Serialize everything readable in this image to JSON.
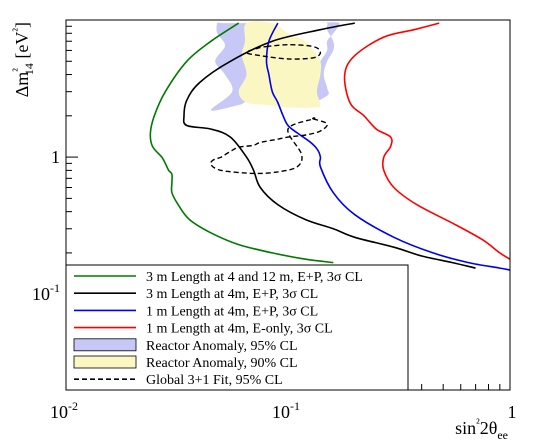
{
  "chart_data": {
    "type": "line",
    "title": "",
    "xlabel": "sin²2θ_ee",
    "ylabel": "Δm²_14 [eV²]",
    "x_scale": "log",
    "y_scale": "log",
    "xlim": [
      0.01,
      1.0
    ],
    "ylim": [
      0.02,
      10.0
    ],
    "grid": false,
    "legend_position": "bottom-left",
    "x_ticks": [
      {
        "value": 0.01,
        "base": "10",
        "exp": "-2"
      },
      {
        "value": 0.1,
        "base": "10",
        "exp": "-1"
      },
      {
        "value": 1.0,
        "base": "1",
        "exp": ""
      }
    ],
    "y_ticks": [
      {
        "value": 0.1,
        "base": "10",
        "exp": "-1"
      },
      {
        "value": 1.0,
        "base": "1",
        "exp": ""
      }
    ],
    "series": [
      {
        "name": "3 m Length at 4 and 12 m, E+P, 3σ CL",
        "color": "#007a00",
        "style": "solid",
        "x": [
          0.06,
          0.045,
          0.035,
          0.028,
          0.025,
          0.024,
          0.0245,
          0.027,
          0.028,
          0.029,
          0.03,
          0.03,
          0.03,
          0.032,
          0.036,
          0.045,
          0.06,
          0.085,
          0.12,
          0.16
        ],
        "y": [
          9.5,
          7,
          5,
          3,
          2,
          1.5,
          1.2,
          1.0,
          0.9,
          0.8,
          0.75,
          0.65,
          0.55,
          0.45,
          0.35,
          0.28,
          0.23,
          0.2,
          0.18,
          0.17
        ]
      },
      {
        "name": "3 m Length at 4m, E+P, 3σ CL",
        "color": "#000000",
        "style": "solid",
        "x": [
          0.2,
          0.14,
          0.085,
          0.055,
          0.04,
          0.035,
          0.034,
          0.035,
          0.045,
          0.055,
          0.065,
          0.07,
          0.075,
          0.09,
          0.12,
          0.16,
          0.2,
          0.3,
          0.4,
          0.55,
          0.7
        ],
        "y": [
          9.5,
          8.5,
          7,
          5,
          3.5,
          2.6,
          2.0,
          1.7,
          1.6,
          1.4,
          1.0,
          0.8,
          0.6,
          0.45,
          0.35,
          0.3,
          0.26,
          0.22,
          0.19,
          0.17,
          0.155
        ]
      },
      {
        "name": "1 m Length at 4m, E+P, 3σ CL",
        "color": "#0000ee",
        "style": "solid",
        "x": [
          0.09,
          0.082,
          0.08,
          0.082,
          0.085,
          0.09,
          0.095,
          0.1,
          0.11,
          0.125,
          0.135,
          0.14,
          0.14,
          0.16,
          0.2,
          0.3,
          0.45,
          0.65,
          0.9,
          1.0
        ],
        "y": [
          9.5,
          7,
          5,
          4,
          3,
          2.5,
          2.0,
          1.7,
          1.5,
          1.3,
          1.15,
          1.0,
          0.85,
          0.55,
          0.38,
          0.26,
          0.2,
          0.17,
          0.155,
          0.15
        ]
      },
      {
        "name": "1 m Length at 4m, E-only, 3σ CL",
        "color": "#ff0000",
        "style": "solid",
        "x": [
          0.48,
          0.37,
          0.27,
          0.2,
          0.18,
          0.19,
          0.22,
          0.25,
          0.29,
          0.29,
          0.27,
          0.27,
          0.3,
          0.38,
          0.55,
          0.75,
          0.9,
          1.0
        ],
        "y": [
          9.5,
          8.5,
          7.5,
          5.5,
          4,
          2.5,
          2.0,
          1.6,
          1.4,
          1.2,
          1.0,
          0.8,
          0.6,
          0.45,
          0.33,
          0.25,
          0.2,
          0.18
        ]
      },
      {
        "name": "Reactor Anomaly, 95% CL",
        "color": "#c7c8f5",
        "style": "fill",
        "x": [
          0.05,
          0.065,
          0.075,
          0.078,
          0.085,
          0.082,
          0.07,
          0.085,
          0.09,
          0.12,
          0.15,
          0.15,
          0.145,
          0.15,
          0.16,
          0.16,
          0.15,
          0.15,
          0.14,
          0.17,
          0.16,
          0.15,
          0.15,
          0.14,
          0.13,
          0.12,
          0.13,
          0.12,
          0.07,
          0.06,
          0.045,
          0.056,
          0.052,
          0.047,
          0.052,
          0.048,
          0.048
        ],
        "y": [
          9.5,
          9.5,
          9.5,
          8,
          6.5,
          5,
          3.5,
          3,
          2.4,
          2.4,
          2.8,
          3.2,
          4,
          5,
          6,
          7,
          8.5,
          9.5,
          9.5,
          9.5,
          8,
          7,
          6,
          5,
          4,
          3.5,
          3,
          2.6,
          2.6,
          2.4,
          2.2,
          3,
          4,
          5,
          6.5,
          8,
          9.5
        ]
      },
      {
        "name": "Reactor Anomaly, 90% CL",
        "color": "#fbf7c3",
        "style": "fill",
        "x": [
          0.065,
          0.085,
          0.1,
          0.12,
          0.13,
          0.14,
          0.14,
          0.135,
          0.14,
          0.13,
          0.1,
          0.08,
          0.065,
          0.06,
          0.065,
          0.062,
          0.064
        ],
        "y": [
          9.5,
          9.5,
          8,
          7,
          6,
          5,
          4,
          3,
          2.4,
          2.3,
          2.3,
          2.4,
          2.5,
          3,
          4,
          5.5,
          7
        ]
      },
      {
        "name": "Global 3+1 Fit,  95% CL",
        "color": "#000000",
        "style": "dashed",
        "x": [
          0.08,
          0.1,
          0.13,
          0.14,
          0.13,
          0.1,
          0.075,
          0.065,
          0.075,
          0.08
        ],
        "y": [
          6.4,
          6.6,
          6.4,
          5.8,
          5.3,
          5.2,
          5.5,
          5.8,
          6.3,
          6.4
        ]
      },
      {
        "name": "Global 3+1 Fit,  95% CL (lower contour)",
        "color": "#000000",
        "style": "dashed",
        "x": [
          0.13,
          0.15,
          0.14,
          0.12,
          0.1,
          0.09,
          0.075,
          0.07,
          0.06,
          0.055,
          0.05,
          0.046,
          0.045,
          0.05,
          0.07,
          0.09,
          0.11,
          0.115,
          0.1,
          0.13
        ],
        "y": [
          1.9,
          1.75,
          1.55,
          1.45,
          1.4,
          1.35,
          1.28,
          1.22,
          1.18,
          1.1,
          1.0,
          0.95,
          0.88,
          0.8,
          0.76,
          0.78,
          0.85,
          1.05,
          1.6,
          1.9
        ]
      }
    ],
    "legend": [
      {
        "label": "3 m Length at 4 and 12 m, E+P, 3σ CL",
        "kind": "line",
        "color": "#007a00"
      },
      {
        "label": "3 m Length at 4m, E+P, 3σ CL",
        "kind": "line",
        "color": "#000000"
      },
      {
        "label": "1 m Length at 4m, E+P, 3σ CL",
        "kind": "line",
        "color": "#0000ee"
      },
      {
        "label": "1 m Length at 4m, E-only, 3σ CL",
        "kind": "line",
        "color": "#ff0000"
      },
      {
        "label": "Reactor Anomaly, 95% CL",
        "kind": "box",
        "color": "#c7c8f5"
      },
      {
        "label": "Reactor Anomaly, 90% CL",
        "kind": "box",
        "color": "#fbf7c3"
      },
      {
        "label": "Global 3+1 Fit,  95% CL",
        "kind": "dashed",
        "color": "#000000"
      }
    ]
  }
}
